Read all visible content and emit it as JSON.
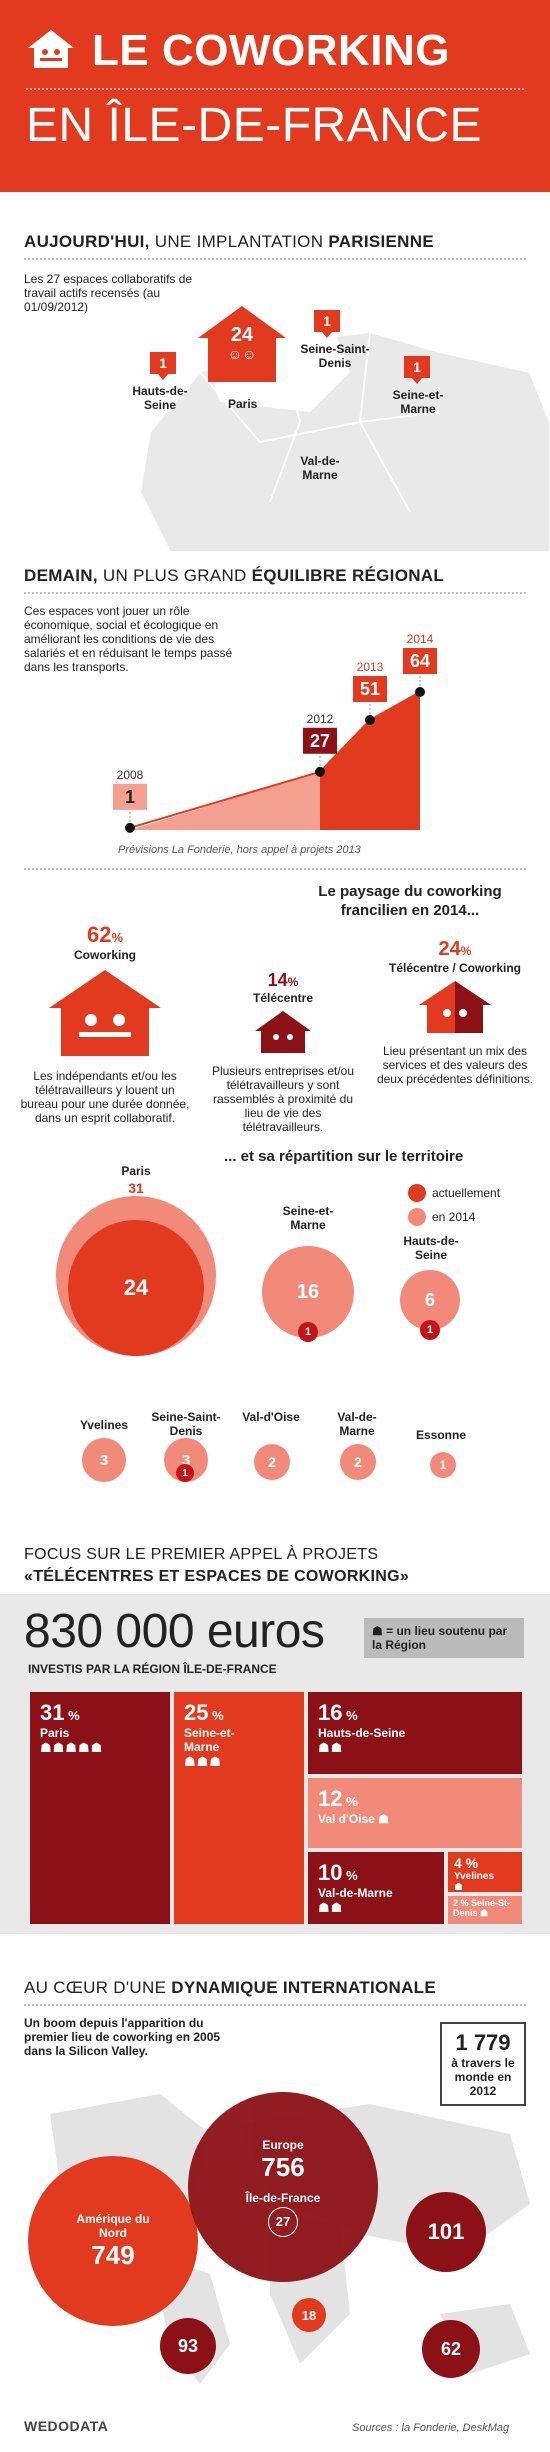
{
  "header": {
    "title_line1": "LE COWORKING",
    "title_line2": "EN ÎLE-DE-FRANCE"
  },
  "section1": {
    "title_a": "AUJOURD'HUI,",
    "title_b": "UNE IMPLANTATION",
    "title_c": "PARISIENNE",
    "intro": "Les 27 espaces collaboratifs de travail actifs recensés (au 01/09/2012)",
    "map": [
      {
        "name": "Paris",
        "count": "24"
      },
      {
        "name": "Hauts-de-Seine",
        "count": "1"
      },
      {
        "name": "Seine-Saint-Denis",
        "count": "1"
      },
      {
        "name": "Seine-et-Marne",
        "count": "1"
      },
      {
        "name": "Val-de-Marne",
        "count": ""
      }
    ]
  },
  "section2": {
    "title_a": "DEMAIN,",
    "title_b": "UN PLUS GRAND",
    "title_c": "ÉQUILIBRE RÉGIONAL",
    "intro": "Ces espaces vont jouer un rôle économique, social et écologique en améliorant les conditions de vie des salariés et en réduisant le temps passé dans les transports.",
    "note": "Prévisions La Fonderie, hors appel à projets 2013"
  },
  "chart_data": {
    "type": "area",
    "x": [
      "2008",
      "2012",
      "2013",
      "2014"
    ],
    "values": [
      1,
      27,
      51,
      64
    ],
    "title": "",
    "xlabel": "",
    "ylabel": ""
  },
  "section3": {
    "title": "Le paysage du coworking francilien en 2014...",
    "items": [
      {
        "pct": "62",
        "unit": "%",
        "name": "Coworking",
        "desc": "Les indépendants et/ou les télétravailleurs y louent un bureau pour une durée donnée, dans un esprit collaboratif."
      },
      {
        "pct": "14",
        "unit": "%",
        "name": "Télécentre",
        "desc": "Plusieurs entreprises et/ou télétravailleurs y sont rassemblés à proximité du lieu de vie des télétravailleurs."
      },
      {
        "pct": "24",
        "unit": "%",
        "name": "Télécentre / Coworking",
        "desc": "Lieu présentant un mix des services et des valeurs des deux précédentes définitions."
      }
    ]
  },
  "section4": {
    "title": "... et sa répartition sur le territoire",
    "legend_now": "actuellement",
    "legend_2014": "en 2014",
    "places": [
      {
        "name": "Paris",
        "now": "24",
        "future": "31"
      },
      {
        "name": "Seine-et-Marne",
        "now": "1",
        "future": "16"
      },
      {
        "name": "Hauts-de-Seine",
        "now": "1",
        "future": "6"
      },
      {
        "name": "Yvelines",
        "now": "",
        "future": "3"
      },
      {
        "name": "Seine-Saint-Denis",
        "now": "1",
        "future": "3"
      },
      {
        "name": "Val-d'Oise",
        "now": "",
        "future": "2"
      },
      {
        "name": "Val-de-Marne",
        "now": "",
        "future": "2"
      },
      {
        "name": "Essonne",
        "now": "",
        "future": "1"
      }
    ]
  },
  "section5": {
    "title_line1": "FOCUS SUR LE PREMIER APPEL À PROJETS",
    "title_line2": "«TÉLÉCENTRES ET ESPACES DE COWORKING»",
    "amount": "830 000 euros",
    "amount_sub": "INVESTIS PAR LA RÉGION ÎLE-DE-FRANCE",
    "legend": "= un lieu soutenu par la Région",
    "tiles": [
      {
        "pct": "31",
        "name": "Paris",
        "houses": "☗☗☗☗☗"
      },
      {
        "pct": "25",
        "name": "Seine-et-Marne",
        "houses": "☗☗☗"
      },
      {
        "pct": "16",
        "name": "Hauts-de-Seine",
        "houses": "☗☗"
      },
      {
        "pct": "12",
        "name": "Val d'Oise",
        "houses": "☗"
      },
      {
        "pct": "10",
        "name": "Val-de-Marne",
        "houses": "☗☗"
      },
      {
        "pct": "4",
        "name": "Yvelines",
        "houses": "☗"
      },
      {
        "pct": "2",
        "name": "Seine-St-Denis",
        "houses": "☗"
      }
    ]
  },
  "section6": {
    "title_a": "AU CŒUR D'UNE",
    "title_b": "DYNAMIQUE INTERNATIONALE",
    "intro": "Un boom depuis l'apparition du premier lieu de coworking en 2005 dans la Silicon Valley.",
    "world_count": "1 779",
    "world_text": "à travers le monde en 2012",
    "regions": [
      {
        "name": "Amérique du Nord",
        "value": "749"
      },
      {
        "name": "Europe",
        "value": "756"
      },
      {
        "name": "Île-de-France",
        "value": "27"
      },
      {
        "name": "",
        "value": "101"
      },
      {
        "name": "",
        "value": "93"
      },
      {
        "name": "",
        "value": "18"
      },
      {
        "name": "",
        "value": "62"
      }
    ]
  },
  "footer": {
    "logo": "WEDODATA",
    "sources": "Sources : la Fonderie, DeskMag"
  },
  "colors": {
    "red": "#e23a1e",
    "dark_red": "#8c1116",
    "salmon": "#f28a7a",
    "grey": "#e6e6e6"
  }
}
